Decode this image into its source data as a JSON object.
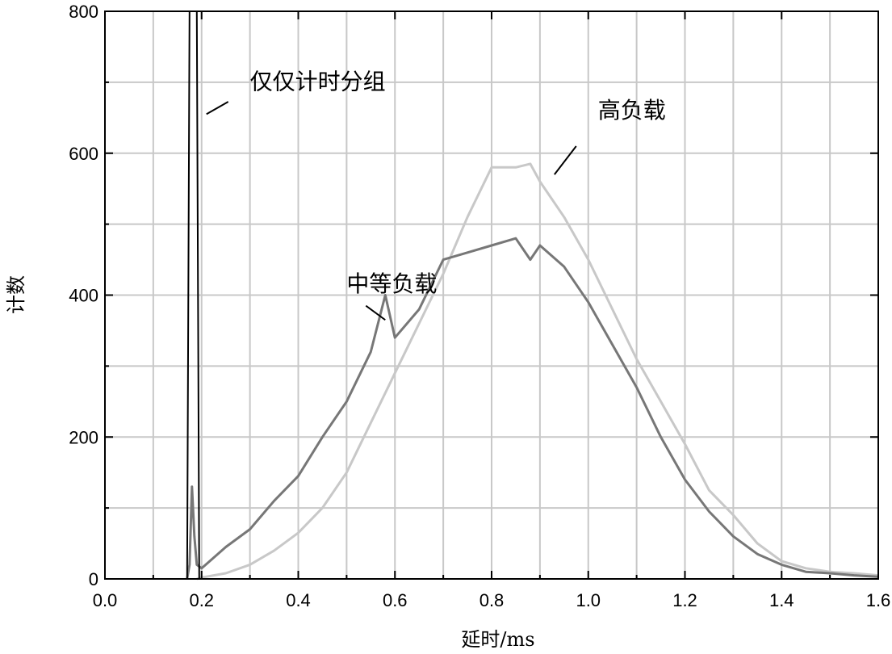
{
  "chart_data": {
    "type": "line",
    "title": "",
    "xlabel": "延时/ms",
    "ylabel": "计数",
    "xlim": [
      0.0,
      1.6
    ],
    "ylim": [
      0,
      800
    ],
    "grid": true,
    "x_ticks": [
      "0.0",
      "0.2",
      "0.4",
      "0.6",
      "0.8",
      "1.0",
      "1.2",
      "1.4",
      "1.6"
    ],
    "y_ticks": [
      "0",
      "200",
      "400",
      "600",
      "800"
    ],
    "series": [
      {
        "name": "仅仅计时分组",
        "color": "#000000",
        "x": [
          0.0,
          0.17,
          0.175,
          0.18,
          0.185,
          0.19,
          0.195,
          1.6
        ],
        "y": [
          0,
          0,
          800,
          800,
          800,
          800,
          0,
          0
        ]
      },
      {
        "name": "中等负载",
        "color": "#777777",
        "x": [
          0.17,
          0.175,
          0.18,
          0.185,
          0.19,
          0.2,
          0.25,
          0.3,
          0.35,
          0.4,
          0.45,
          0.5,
          0.55,
          0.58,
          0.6,
          0.65,
          0.7,
          0.75,
          0.8,
          0.85,
          0.88,
          0.9,
          0.95,
          1.0,
          1.05,
          1.1,
          1.15,
          1.2,
          1.25,
          1.3,
          1.35,
          1.4,
          1.45,
          1.5,
          1.55,
          1.6
        ],
        "y": [
          0,
          20,
          130,
          60,
          20,
          15,
          45,
          70,
          110,
          145,
          200,
          250,
          320,
          400,
          340,
          380,
          450,
          460,
          470,
          480,
          450,
          470,
          440,
          390,
          330,
          270,
          200,
          140,
          95,
          60,
          35,
          20,
          10,
          8,
          5,
          3
        ]
      },
      {
        "name": "高负载",
        "color": "#c8c8c8",
        "x": [
          0.19,
          0.2,
          0.25,
          0.3,
          0.35,
          0.4,
          0.45,
          0.5,
          0.55,
          0.6,
          0.65,
          0.7,
          0.75,
          0.8,
          0.85,
          0.88,
          0.9,
          0.95,
          1.0,
          1.05,
          1.1,
          1.15,
          1.2,
          1.25,
          1.3,
          1.35,
          1.4,
          1.45,
          1.5,
          1.55,
          1.6
        ],
        "y": [
          0,
          2,
          8,
          20,
          40,
          65,
          100,
          150,
          220,
          290,
          360,
          430,
          510,
          580,
          580,
          585,
          560,
          510,
          450,
          380,
          310,
          250,
          190,
          125,
          90,
          50,
          25,
          15,
          10,
          8,
          5
        ]
      }
    ],
    "annotations": [
      {
        "text": "仅仅计时分组",
        "x": 0.3,
        "y": 690,
        "target_x": 0.21,
        "target_y": 655
      },
      {
        "text": "中等负载",
        "x": 0.5,
        "y": 405,
        "target_x": 0.58,
        "target_y": 365
      },
      {
        "text": "高负载",
        "x": 1.02,
        "y": 650,
        "target_x": 0.93,
        "target_y": 570
      }
    ]
  }
}
